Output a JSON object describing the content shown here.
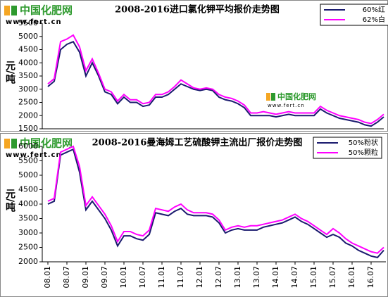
{
  "charts": [
    {
      "type": "line",
      "title": "2008-2016进口氯化钾平均报价走势图",
      "logo": "中国化肥网",
      "url": "www.fert.cn",
      "watermark": "中国化肥网",
      "watermark_url": "www.fert.cn",
      "ylabel": "元/吨",
      "ylim": [
        1500,
        5500
      ],
      "yticks": [
        1500,
        2000,
        2500,
        3000,
        3500,
        4000,
        4500,
        5000,
        5500
      ],
      "series": [
        {
          "name": "60%红",
          "color": "#1a1a6e",
          "values": [
            3100,
            3300,
            4500,
            4700,
            4800,
            4400,
            3500,
            4000,
            3500,
            2900,
            2800,
            2450,
            2700,
            2500,
            2500,
            2350,
            2400,
            2700,
            2700,
            2800,
            3000,
            3200,
            3100,
            3000,
            2950,
            3000,
            2950,
            2700,
            2600,
            2550,
            2450,
            2300,
            2000,
            2000,
            2000,
            2000,
            1950,
            2000,
            2050,
            2000,
            2000,
            2000,
            2000,
            2250,
            2100,
            2000,
            1900,
            1850,
            1800,
            1750,
            1650,
            1600,
            1750,
            1950
          ]
        },
        {
          "name": "62%白",
          "color": "#ff00ff",
          "values": [
            3200,
            3400,
            4800,
            4900,
            5050,
            4600,
            3700,
            4150,
            3600,
            3000,
            2900,
            2550,
            2800,
            2600,
            2600,
            2450,
            2500,
            2800,
            2800,
            2900,
            3100,
            3350,
            3200,
            3050,
            3000,
            3050,
            3000,
            2800,
            2700,
            2650,
            2550,
            2400,
            2100,
            2100,
            2150,
            2100,
            2050,
            2100,
            2150,
            2100,
            2100,
            2100,
            2100,
            2350,
            2200,
            2100,
            2000,
            1950,
            1900,
            1850,
            1750,
            1700,
            1850,
            2050
          ]
        }
      ]
    },
    {
      "type": "line",
      "title": "2008-2016曼海姆工艺硫酸钾主流出厂报价走势图",
      "logo": "中国化肥网",
      "url": "www.fert.cn",
      "ylabel": "元/吨",
      "ylim": [
        2000,
        6000
      ],
      "yticks": [
        2000,
        2500,
        3000,
        3500,
        4000,
        4500,
        5000,
        5500,
        6000
      ],
      "categories": [
        "08.01",
        null,
        null,
        "08.07",
        null,
        null,
        "09.01",
        null,
        null,
        "09.07",
        null,
        null,
        "10.01",
        null,
        null,
        "10.07",
        null,
        null,
        "11.01",
        null,
        null,
        "11.07",
        null,
        null,
        "12.01",
        null,
        null,
        "12.07",
        null,
        null,
        "13.01",
        null,
        null,
        "13.07",
        null,
        null,
        "14.01",
        null,
        null,
        "14.07",
        null,
        null,
        "15.01",
        null,
        null,
        "15.07",
        null,
        null,
        "16.01",
        null,
        null,
        "16.07",
        null,
        null
      ],
      "series": [
        {
          "name": "50%粉状",
          "color": "#1a1a6e",
          "values": [
            4000,
            4100,
            5700,
            5800,
            5900,
            5100,
            3800,
            4100,
            3800,
            3500,
            3100,
            2550,
            2900,
            2900,
            2800,
            2750,
            2950,
            3700,
            3650,
            3600,
            3750,
            3850,
            3650,
            3600,
            3600,
            3600,
            3550,
            3350,
            3000,
            3100,
            3150,
            3100,
            3100,
            3100,
            3200,
            3250,
            3300,
            3350,
            3450,
            3550,
            3400,
            3300,
            3150,
            3000,
            2850,
            2950,
            2850,
            2650,
            2550,
            2400,
            2300,
            2200,
            2150,
            2400
          ]
        },
        {
          "name": "50%颗粒",
          "color": "#ff00ff",
          "values": [
            4100,
            4200,
            5800,
            5900,
            6000,
            5300,
            3950,
            4250,
            3950,
            3650,
            3250,
            2700,
            3050,
            3050,
            2950,
            2900,
            3100,
            3850,
            3800,
            3750,
            3900,
            4000,
            3800,
            3700,
            3700,
            3700,
            3650,
            3450,
            3100,
            3200,
            3250,
            3200,
            3250,
            3250,
            3300,
            3350,
            3400,
            3450,
            3550,
            3650,
            3500,
            3400,
            3250,
            3100,
            2950,
            3150,
            3000,
            2800,
            2650,
            2550,
            2450,
            2350,
            2300,
            2500
          ]
        }
      ]
    }
  ]
}
